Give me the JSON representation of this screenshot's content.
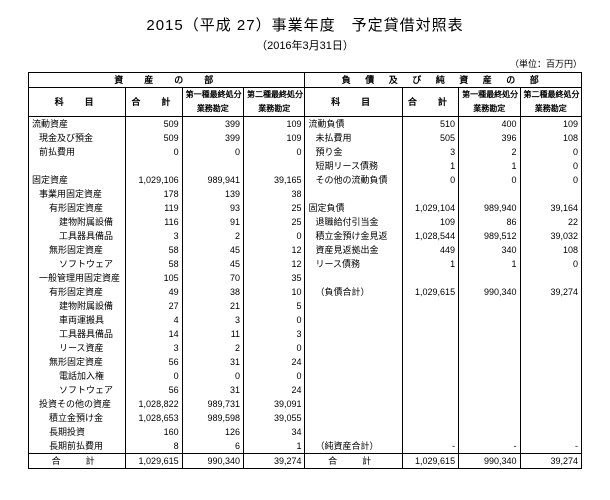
{
  "title": "2015（平成 27）事業年度　予定貸借対照表",
  "subtitle": "（2016年3月31日）",
  "unit": "（単位：百万円）",
  "head": {
    "assets_section": "資　産　の　部",
    "liab_section": "負 債 及 び 純 資 産 の 部",
    "item": "科　目",
    "total": "合　計",
    "col1a": "第一種最終処分",
    "col1b": "業務勘定",
    "col2a": "第二種最終処分",
    "col2b": "業務勘定",
    "grand_total": "合　計"
  },
  "assets": [
    {
      "label": "流動資産",
      "ind": 0,
      "v": [
        "509",
        "399",
        "109"
      ]
    },
    {
      "label": "現金及び預金",
      "ind": 1,
      "v": [
        "509",
        "399",
        "109"
      ]
    },
    {
      "label": "前払費用",
      "ind": 1,
      "v": [
        "0",
        "0",
        "0"
      ]
    },
    {
      "label": "",
      "ind": 0,
      "v": [
        "",
        "",
        ""
      ]
    },
    {
      "label": "固定資産",
      "ind": 0,
      "v": [
        "1,029,106",
        "989,941",
        "39,165"
      ]
    },
    {
      "label": "事業用固定資産",
      "ind": 1,
      "v": [
        "178",
        "139",
        "38"
      ]
    },
    {
      "label": "有形固定資産",
      "ind": 2,
      "v": [
        "119",
        "93",
        "25"
      ]
    },
    {
      "label": "建物附属設備",
      "ind": 3,
      "v": [
        "116",
        "91",
        "25"
      ]
    },
    {
      "label": "工具器具備品",
      "ind": 3,
      "v": [
        "3",
        "2",
        "0"
      ]
    },
    {
      "label": "無形固定資産",
      "ind": 2,
      "v": [
        "58",
        "45",
        "12"
      ]
    },
    {
      "label": "ソフトウェア",
      "ind": 3,
      "v": [
        "58",
        "45",
        "12"
      ]
    },
    {
      "label": "一般管理用固定資産",
      "ind": 1,
      "v": [
        "105",
        "70",
        "35"
      ]
    },
    {
      "label": "有形固定資産",
      "ind": 2,
      "v": [
        "49",
        "38",
        "10"
      ]
    },
    {
      "label": "建物附属設備",
      "ind": 3,
      "v": [
        "27",
        "21",
        "5"
      ]
    },
    {
      "label": "車両運搬具",
      "ind": 3,
      "v": [
        "4",
        "3",
        "0"
      ]
    },
    {
      "label": "工具器具備品",
      "ind": 3,
      "v": [
        "14",
        "11",
        "3"
      ]
    },
    {
      "label": "リース資産",
      "ind": 3,
      "v": [
        "3",
        "2",
        "0"
      ]
    },
    {
      "label": "無形固定資産",
      "ind": 2,
      "v": [
        "56",
        "31",
        "24"
      ]
    },
    {
      "label": "電話加入権",
      "ind": 3,
      "v": [
        "0",
        "0",
        "0"
      ]
    },
    {
      "label": "ソフトウェア",
      "ind": 3,
      "v": [
        "56",
        "31",
        "24"
      ]
    },
    {
      "label": "投資その他の資産",
      "ind": 1,
      "v": [
        "1,028,822",
        "989,731",
        "39,091"
      ]
    },
    {
      "label": "積立金預け金",
      "ind": 2,
      "v": [
        "1,028,653",
        "989,598",
        "39,055"
      ]
    },
    {
      "label": "長期投資",
      "ind": 2,
      "v": [
        "160",
        "126",
        "34"
      ]
    },
    {
      "label": "長期前払費用",
      "ind": 2,
      "v": [
        "8",
        "6",
        "1"
      ]
    }
  ],
  "liabs": [
    {
      "label": "流動負債",
      "ind": 0,
      "v": [
        "510",
        "400",
        "109"
      ]
    },
    {
      "label": "未払費用",
      "ind": 1,
      "v": [
        "505",
        "396",
        "108"
      ]
    },
    {
      "label": "預り金",
      "ind": 1,
      "v": [
        "3",
        "2",
        "0"
      ]
    },
    {
      "label": "短期リース債務",
      "ind": 1,
      "v": [
        "1",
        "1",
        "0"
      ]
    },
    {
      "label": "その他の流動負債",
      "ind": 1,
      "v": [
        "0",
        "0",
        "0"
      ]
    },
    {
      "label": "",
      "ind": 0,
      "v": [
        "",
        "",
        ""
      ]
    },
    {
      "label": "固定負債",
      "ind": 0,
      "v": [
        "1,029,104",
        "989,940",
        "39,164"
      ]
    },
    {
      "label": "退職給付引当金",
      "ind": 1,
      "v": [
        "109",
        "86",
        "22"
      ]
    },
    {
      "label": "積立金預け金見返",
      "ind": 1,
      "v": [
        "1,028,544",
        "989,512",
        "39,032"
      ]
    },
    {
      "label": "資産見返拠出金",
      "ind": 1,
      "v": [
        "449",
        "340",
        "108"
      ]
    },
    {
      "label": "リース債務",
      "ind": 1,
      "v": [
        "1",
        "1",
        "0"
      ]
    },
    {
      "label": "",
      "ind": 0,
      "v": [
        "",
        "",
        ""
      ]
    },
    {
      "label": "（負債合計）",
      "ind": 1,
      "v": [
        "1,029,615",
        "990,340",
        "39,274"
      ]
    },
    {
      "label": "",
      "ind": 0,
      "v": [
        "",
        "",
        ""
      ]
    },
    {
      "label": "",
      "ind": 0,
      "v": [
        "",
        "",
        ""
      ]
    },
    {
      "label": "",
      "ind": 0,
      "v": [
        "",
        "",
        ""
      ]
    },
    {
      "label": "",
      "ind": 0,
      "v": [
        "",
        "",
        ""
      ]
    },
    {
      "label": "",
      "ind": 0,
      "v": [
        "",
        "",
        ""
      ]
    },
    {
      "label": "",
      "ind": 0,
      "v": [
        "",
        "",
        ""
      ]
    },
    {
      "label": "",
      "ind": 0,
      "v": [
        "",
        "",
        ""
      ]
    },
    {
      "label": "",
      "ind": 0,
      "v": [
        "",
        "",
        ""
      ]
    },
    {
      "label": "",
      "ind": 0,
      "v": [
        "",
        "",
        ""
      ]
    },
    {
      "label": "",
      "ind": 0,
      "v": [
        "",
        "",
        ""
      ]
    },
    {
      "label": "（純資産合計）",
      "ind": 1,
      "v": [
        "-",
        "-",
        "-"
      ]
    }
  ],
  "totals": {
    "left": [
      "1,029,615",
      "990,340",
      "39,274"
    ],
    "right": [
      "1,029,615",
      "990,340",
      "39,274"
    ]
  }
}
